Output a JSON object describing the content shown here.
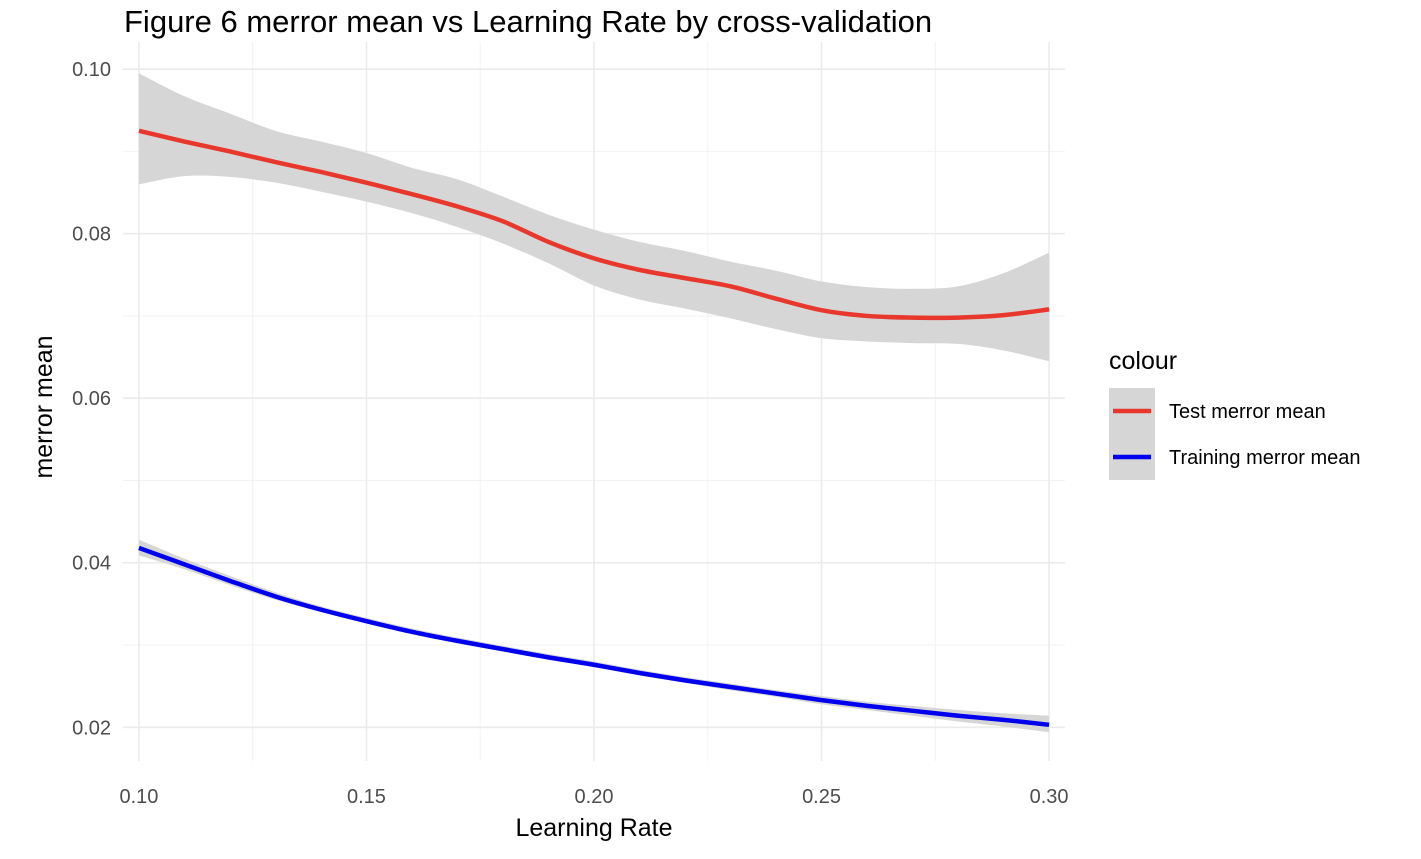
{
  "chart_data": {
    "type": "line",
    "title": "Figure 6 merror mean vs Learning Rate by cross-validation",
    "xlabel": "Learning Rate",
    "ylabel": "merror mean",
    "xlim": [
      0.0965,
      0.3035
    ],
    "ylim": [
      0.0159,
      0.1033
    ],
    "x_ticks": [
      "0.10",
      "0.15",
      "0.20",
      "0.25",
      "0.30"
    ],
    "y_ticks": [
      "0.02",
      "0.04",
      "0.06",
      "0.08",
      "0.10"
    ],
    "grid": true,
    "legend": {
      "title": "colour",
      "position": "right"
    },
    "series": [
      {
        "name": "Test merror mean",
        "color": "#e8372c",
        "x": [
          0.1,
          0.11,
          0.12,
          0.13,
          0.14,
          0.15,
          0.16,
          0.17,
          0.18,
          0.19,
          0.2,
          0.21,
          0.22,
          0.23,
          0.24,
          0.25,
          0.26,
          0.27,
          0.28,
          0.29,
          0.3
        ],
        "y": [
          0.0925,
          0.0912,
          0.09,
          0.0887,
          0.0875,
          0.0862,
          0.0848,
          0.0833,
          0.0815,
          0.079,
          0.077,
          0.0756,
          0.0746,
          0.0736,
          0.0721,
          0.0707,
          0.07,
          0.0698,
          0.0698,
          0.0701,
          0.0708
        ],
        "ci_lower": [
          0.086,
          0.087,
          0.0869,
          0.0862,
          0.0851,
          0.0839,
          0.0825,
          0.0808,
          0.0788,
          0.0764,
          0.0737,
          0.072,
          0.0709,
          0.0697,
          0.0684,
          0.0673,
          0.0669,
          0.0667,
          0.0666,
          0.0658,
          0.0645
        ],
        "ci_upper": [
          0.0995,
          0.0967,
          0.0946,
          0.0925,
          0.0912,
          0.0898,
          0.088,
          0.0866,
          0.0845,
          0.0823,
          0.0805,
          0.079,
          0.0779,
          0.0766,
          0.0755,
          0.0742,
          0.0735,
          0.0733,
          0.0736,
          0.0752,
          0.0777
        ]
      },
      {
        "name": "Training merror mean",
        "color": "#0000ee",
        "x": [
          0.1,
          0.11,
          0.12,
          0.13,
          0.14,
          0.15,
          0.16,
          0.17,
          0.18,
          0.19,
          0.2,
          0.21,
          0.22,
          0.23,
          0.24,
          0.25,
          0.26,
          0.27,
          0.28,
          0.29,
          0.3
        ],
        "y": [
          0.0418,
          0.0398,
          0.0378,
          0.0359,
          0.0343,
          0.0329,
          0.0316,
          0.0305,
          0.0295,
          0.0285,
          0.0276,
          0.0266,
          0.0257,
          0.0249,
          0.0241,
          0.0233,
          0.0226,
          0.022,
          0.0214,
          0.0209,
          0.0203
        ],
        "ci_lower": [
          0.0409,
          0.0392,
          0.0373,
          0.0355,
          0.034,
          0.0326,
          0.0313,
          0.0302,
          0.0292,
          0.0282,
          0.0273,
          0.0263,
          0.0254,
          0.0245,
          0.0237,
          0.0228,
          0.0221,
          0.0214,
          0.0207,
          0.0201,
          0.0194
        ],
        "ci_upper": [
          0.0428,
          0.0405,
          0.0384,
          0.0364,
          0.0347,
          0.0333,
          0.032,
          0.0309,
          0.0299,
          0.0289,
          0.028,
          0.027,
          0.0261,
          0.0253,
          0.0245,
          0.0238,
          0.0231,
          0.0226,
          0.0221,
          0.0217,
          0.0214
        ]
      }
    ],
    "ribbon_color": "#d6d6d6"
  }
}
